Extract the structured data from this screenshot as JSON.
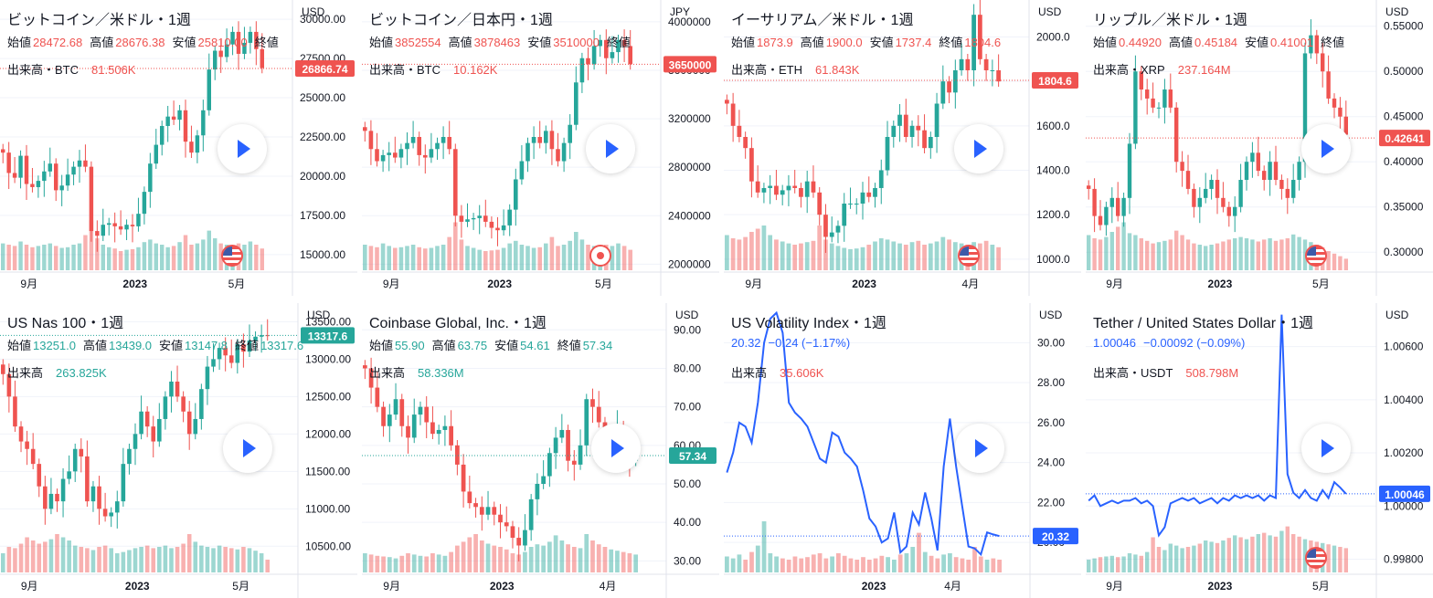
{
  "colors": {
    "up": "#26a69a",
    "down": "#ef5350",
    "line": "#2962ff",
    "grid": "#f0f3fa",
    "axis_text": "#131722",
    "bg": "#ffffff"
  },
  "chart_data": [
    {
      "type": "candlestick",
      "title": "ビットコイン／米ドル・1週",
      "currency": "USD",
      "ohlc_labels": {
        "open": "始値",
        "high": "高値",
        "low": "安値",
        "close": "終値"
      },
      "ohlc": {
        "open": "28472.68",
        "high": "28676.38",
        "low": "25810.00",
        "close": ""
      },
      "volume_label": "出来高・BTC",
      "volume": "81.506K",
      "y_ticks": [
        "30000.00",
        "27500.00",
        "25000.00",
        "22500.00",
        "20000.00",
        "17500.00",
        "15000.00"
      ],
      "ylim": [
        14000,
        31000
      ],
      "y_tick_values": [
        30000,
        27500,
        25000,
        22500,
        20000,
        17500,
        15000
      ],
      "x_ticks": [
        "9月",
        "2023",
        "5月"
      ],
      "last_price": "26866.74",
      "last_value": 26866.74,
      "last_dir": "down",
      "flag": "us",
      "closes": [
        21500,
        20200,
        19900,
        21300,
        19500,
        19300,
        19700,
        20300,
        20800,
        19100,
        19400,
        20100,
        20600,
        21000,
        20600,
        16500,
        16200,
        16900,
        17000,
        16800,
        16600,
        16900,
        16800,
        17600,
        19000,
        20800,
        22000,
        23200,
        23800,
        23600,
        24200,
        22200,
        21500,
        22600,
        24200,
        26800,
        28000,
        27600,
        28400,
        29200,
        27800,
        28500,
        29200,
        28100,
        26900
      ],
      "volumes": [
        0.42,
        0.4,
        0.38,
        0.45,
        0.4,
        0.36,
        0.38,
        0.4,
        0.42,
        0.38,
        0.35,
        0.36,
        0.4,
        0.42,
        0.55,
        0.78,
        0.5,
        0.4,
        0.36,
        0.34,
        0.3,
        0.32,
        0.33,
        0.36,
        0.44,
        0.48,
        0.42,
        0.4,
        0.36,
        0.38,
        0.44,
        0.55,
        0.4,
        0.42,
        0.48,
        0.62,
        0.5,
        0.42,
        0.4,
        0.38,
        0.42,
        0.4,
        0.45,
        0.4,
        0.34
      ]
    },
    {
      "type": "candlestick",
      "title": "ビットコイン／日本円・1週",
      "currency": "JPY",
      "ohlc_labels": {
        "open": "始値",
        "high": "高値",
        "low": "安値",
        "close": "終値"
      },
      "ohlc": {
        "open": "3852554",
        "high": "3878463",
        "low": "3510000",
        "close": ""
      },
      "volume_label": "出来高・BTC",
      "volume": "10.162K",
      "y_ticks": [
        "4000000",
        "3600000",
        "3200000",
        "2800000",
        "2400000",
        "2000000"
      ],
      "ylim": [
        1950000,
        4150000
      ],
      "y_tick_values": [
        4000000,
        3600000,
        3200000,
        2800000,
        2400000,
        2000000
      ],
      "x_ticks": [
        "9月",
        "2023",
        "5月"
      ],
      "last_price": "3650000",
      "last_value": 3650000,
      "last_dir": "down",
      "flag": "jp",
      "closes": [
        3100000,
        2950000,
        2850000,
        2900000,
        2920000,
        2880000,
        2950000,
        3000000,
        3050000,
        2900000,
        2880000,
        2950000,
        3000000,
        3050000,
        2950000,
        2400000,
        2350000,
        2370000,
        2380000,
        2400000,
        2350000,
        2300000,
        2280000,
        2320000,
        2450000,
        2700000,
        2850000,
        3000000,
        3050000,
        3000000,
        3100000,
        2950000,
        2850000,
        3000000,
        3150000,
        3500000,
        3700000,
        3650000,
        3800000,
        3850000,
        3700000,
        3750000,
        3850000,
        3800000,
        3650000
      ],
      "volumes": [
        0.4,
        0.38,
        0.36,
        0.42,
        0.38,
        0.35,
        0.36,
        0.38,
        0.4,
        0.36,
        0.34,
        0.35,
        0.38,
        0.4,
        0.52,
        0.75,
        0.48,
        0.38,
        0.35,
        0.32,
        0.3,
        0.31,
        0.32,
        0.35,
        0.42,
        0.46,
        0.4,
        0.38,
        0.35,
        0.36,
        0.42,
        0.52,
        0.38,
        0.4,
        0.46,
        0.6,
        0.48,
        0.4,
        0.38,
        0.36,
        0.4,
        0.38,
        0.42,
        0.38,
        0.32
      ]
    },
    {
      "type": "candlestick",
      "title": "イーサリアム／米ドル・1週",
      "currency": "USD",
      "ohlc_labels": {
        "open": "始値",
        "high": "高値",
        "low": "安値",
        "close": "終値"
      },
      "ohlc": {
        "open": "1873.9",
        "high": "1900.0",
        "low": "1737.4",
        "close": "1804.6"
      },
      "volume_label": "出来高・ETH",
      "volume": "61.843K",
      "y_ticks": [
        "2000.0",
        "1800.0",
        "1600.0",
        "1400.0",
        "1200.0",
        "1000.0"
      ],
      "ylim": [
        950,
        2150
      ],
      "y_tick_values": [
        2000,
        1800,
        1600,
        1400,
        1200,
        1000
      ],
      "x_ticks": [
        "9月",
        "2023",
        "4月"
      ],
      "last_price": "1804.6",
      "last_value": 1804.6,
      "last_dir": "down",
      "flag": "us",
      "closes": [
        1700,
        1600,
        1550,
        1500,
        1350,
        1300,
        1320,
        1330,
        1290,
        1310,
        1330,
        1320,
        1280,
        1350,
        1300,
        1200,
        1100,
        1120,
        1150,
        1250,
        1250,
        1250,
        1300,
        1280,
        1320,
        1400,
        1550,
        1600,
        1650,
        1550,
        1600,
        1580,
        1500,
        1550,
        1700,
        1800,
        1750,
        1850,
        1900,
        1850,
        2100,
        1900,
        1850,
        1850,
        1800
      ],
      "volumes": [
        0.55,
        0.5,
        0.48,
        0.52,
        0.6,
        0.65,
        0.7,
        0.55,
        0.48,
        0.45,
        0.42,
        0.4,
        0.42,
        0.44,
        0.46,
        0.7,
        0.48,
        0.42,
        0.38,
        0.35,
        0.33,
        0.34,
        0.36,
        0.4,
        0.45,
        0.5,
        0.48,
        0.45,
        0.42,
        0.4,
        0.44,
        0.46,
        0.4,
        0.42,
        0.45,
        0.52,
        0.48,
        0.44,
        0.42,
        0.4,
        0.44,
        0.42,
        0.46,
        0.4,
        0.36
      ]
    },
    {
      "type": "candlestick",
      "title": "リップル／米ドル・1週",
      "currency": "USD",
      "ohlc_labels": {
        "open": "始値",
        "high": "高値",
        "low": "安値",
        "close": "終値"
      },
      "ohlc": {
        "open": "0.44920",
        "high": "0.45184",
        "low": "0.41001",
        "close": ""
      },
      "volume_label": "出来高・XRP",
      "volume": "237.164M",
      "y_ticks": [
        "0.55000",
        "0.50000",
        "0.45000",
        "0.40000",
        "0.35000",
        "0.30000"
      ],
      "ylim": [
        0.28,
        0.575
      ],
      "y_tick_values": [
        0.55,
        0.5,
        0.45,
        0.4,
        0.35,
        0.3
      ],
      "x_ticks": [
        "9月",
        "2023",
        "5月"
      ],
      "last_price": "0.42641",
      "last_value": 0.42641,
      "last_dir": "down",
      "flag": "us",
      "closes": [
        0.37,
        0.34,
        0.33,
        0.35,
        0.36,
        0.34,
        0.36,
        0.42,
        0.5,
        0.48,
        0.47,
        0.46,
        0.46,
        0.48,
        0.46,
        0.4,
        0.39,
        0.37,
        0.35,
        0.36,
        0.37,
        0.38,
        0.36,
        0.35,
        0.34,
        0.35,
        0.38,
        0.4,
        0.41,
        0.39,
        0.38,
        0.4,
        0.38,
        0.37,
        0.36,
        0.38,
        0.4,
        0.52,
        0.54,
        0.52,
        0.5,
        0.47,
        0.46,
        0.45,
        0.43
      ],
      "volumes": [
        0.55,
        0.5,
        0.48,
        0.52,
        0.6,
        0.68,
        0.75,
        0.58,
        0.55,
        0.5,
        0.46,
        0.42,
        0.44,
        0.46,
        0.48,
        0.62,
        0.55,
        0.48,
        0.42,
        0.4,
        0.38,
        0.4,
        0.42,
        0.45,
        0.48,
        0.5,
        0.52,
        0.5,
        0.48,
        0.45,
        0.48,
        0.5,
        0.46,
        0.48,
        0.5,
        0.56,
        0.52,
        0.48,
        0.44,
        0.4,
        0.36,
        0.3,
        0.26,
        0.22,
        0.18
      ]
    },
    {
      "type": "candlestick",
      "title": "US Nas 100・1週",
      "currency": "USD",
      "ohlc_labels": {
        "open": "始値",
        "high": "高値",
        "low": "安値",
        "close": "終値"
      },
      "ohlc": {
        "open": "13251.0",
        "high": "13439.0",
        "low": "13147.8",
        "close": "13317.6"
      },
      "volume_label": "出来高",
      "volume": "263.825K",
      "y_ticks": [
        "13500.00",
        "13000.00",
        "12500.00",
        "12000.00",
        "11500.00",
        "11000.00",
        "10500.00"
      ],
      "ylim": [
        10150,
        13700
      ],
      "y_tick_values": [
        13500,
        13000,
        12500,
        12000,
        11500,
        11000,
        10500
      ],
      "x_ticks": [
        "9月",
        "2023",
        "5月"
      ],
      "last_price": "13317.6",
      "last_value": 13317.6,
      "last_dir": "up",
      "flag": "",
      "closes": [
        12800,
        12500,
        12100,
        11900,
        11800,
        11600,
        11300,
        11000,
        11200,
        11100,
        11400,
        11500,
        11800,
        11700,
        11100,
        11300,
        11000,
        10900,
        10950,
        11100,
        11600,
        11800,
        12000,
        12300,
        12100,
        11900,
        12200,
        12500,
        12700,
        12500,
        12300,
        12000,
        12200,
        12600,
        12900,
        13000,
        13150,
        13050,
        12950,
        13200,
        13100,
        13250,
        13300,
        13320,
        13318
      ],
      "volumes": [
        0.3,
        0.4,
        0.38,
        0.45,
        0.55,
        0.5,
        0.45,
        0.48,
        0.52,
        0.6,
        0.55,
        0.5,
        0.42,
        0.4,
        0.38,
        0.35,
        0.4,
        0.42,
        0.38,
        0.3,
        0.32,
        0.35,
        0.38,
        0.4,
        0.42,
        0.38,
        0.4,
        0.42,
        0.38,
        0.4,
        0.45,
        0.6,
        0.48,
        0.42,
        0.4,
        0.38,
        0.42,
        0.4,
        0.38,
        0.36,
        0.4,
        0.38,
        0.34,
        0.3,
        0.2
      ]
    },
    {
      "type": "candlestick",
      "title": "Coinbase Global, Inc.・1週",
      "currency": "USD",
      "ohlc_labels": {
        "open": "始値",
        "high": "高値",
        "low": "安値",
        "close": "終値"
      },
      "ohlc": {
        "open": "55.90",
        "high": "63.75",
        "low": "54.61",
        "close": "57.34"
      },
      "volume_label": "出来高",
      "volume": "58.336M",
      "y_ticks": [
        "90.00",
        "80.00",
        "70.00",
        "60.00",
        "50.00",
        "40.00",
        "30.00"
      ],
      "ylim": [
        27,
        96
      ],
      "y_tick_values": [
        90,
        80,
        70,
        60,
        50,
        40,
        30
      ],
      "x_ticks": [
        "9月",
        "2023",
        "4月"
      ],
      "last_price": "57.34",
      "last_value": 57.34,
      "last_dir": "up",
      "flag": "",
      "closes": [
        80,
        75,
        70,
        65,
        68,
        72,
        65,
        62,
        68,
        70,
        66,
        63,
        64,
        65,
        60,
        55,
        48,
        45,
        44,
        42,
        44,
        42,
        40,
        39,
        36,
        34,
        38,
        46,
        50,
        52,
        58,
        62,
        64,
        56,
        55,
        60,
        72,
        70,
        66,
        60,
        62,
        65,
        58,
        56,
        57
      ],
      "volumes": [
        0.3,
        0.28,
        0.26,
        0.25,
        0.24,
        0.22,
        0.26,
        0.3,
        0.28,
        0.26,
        0.25,
        0.3,
        0.28,
        0.26,
        0.32,
        0.42,
        0.48,
        0.55,
        0.6,
        0.5,
        0.45,
        0.42,
        0.4,
        0.36,
        0.3,
        0.28,
        0.32,
        0.4,
        0.44,
        0.42,
        0.48,
        0.58,
        0.5,
        0.44,
        0.4,
        0.38,
        0.6,
        0.5,
        0.44,
        0.4,
        0.36,
        0.34,
        0.32,
        0.3,
        0.28
      ]
    },
    {
      "type": "line",
      "title": "US Volatility Index・1週",
      "currency": "USD",
      "ohlc_plain": {
        "value": "20.32",
        "change": "−0.24 (−1.17%)"
      },
      "volume_label": "出来高",
      "volume": "35.606K",
      "y_ticks": [
        "30.00",
        "28.00",
        "26.00",
        "24.00",
        "22.00",
        "20.00"
      ],
      "ylim": [
        18.5,
        31.8
      ],
      "y_tick_values": [
        30,
        28,
        26,
        24,
        22,
        20
      ],
      "x_ticks": [
        "2023",
        "4月"
      ],
      "last_price": "20.32",
      "last_value": 20.32,
      "last_dir": "line",
      "flag": "",
      "closes": [
        23.5,
        24.5,
        26.0,
        25.8,
        25.0,
        27.0,
        30.0,
        31.2,
        31.5,
        30.5,
        27.0,
        26.5,
        26.2,
        25.8,
        25.0,
        24.2,
        24.0,
        25.5,
        25.3,
        24.5,
        24.2,
        23.8,
        22.6,
        21.2,
        20.8,
        20.0,
        20.2,
        21.5,
        19.5,
        19.8,
        21.5,
        20.9,
        22.5,
        21.2,
        19.6,
        23.8,
        26.2,
        23.8,
        21.8,
        19.8,
        19.7,
        19.4,
        20.5,
        20.4,
        20.32
      ],
      "volumes": [
        0.25,
        0.22,
        0.28,
        0.2,
        0.32,
        0.42,
        0.8,
        0.3,
        0.25,
        0.22,
        0.2,
        0.25,
        0.22,
        0.24,
        0.28,
        0.3,
        0.22,
        0.25,
        0.3,
        0.26,
        0.22,
        0.2,
        0.24,
        0.2,
        0.22,
        0.26,
        0.24,
        0.2,
        0.28,
        0.3,
        0.4,
        0.62,
        0.32,
        0.26,
        0.22,
        0.28,
        0.3,
        0.24,
        0.22,
        0.2,
        0.4,
        0.25,
        0.2,
        0.22,
        0.2
      ]
    },
    {
      "type": "line",
      "title": "Tether / United States Dollar・1週",
      "currency": "USD",
      "ohlc_plain": {
        "value": "1.00046",
        "change": "−0.00092 (−0.09%)"
      },
      "volume_label": "出来高・USDT",
      "volume": "508.798M",
      "y_ticks": [
        "1.00600",
        "1.00400",
        "1.00200",
        "1.00000",
        "0.99800"
      ],
      "ylim": [
        0.9975,
        1.0075
      ],
      "y_tick_values": [
        1.006,
        1.004,
        1.002,
        1.0,
        0.998
      ],
      "x_ticks": [
        "9月",
        "2023",
        "5月"
      ],
      "last_price": "1.00046",
      "last_value": 1.00046,
      "last_dir": "line",
      "flag": "us",
      "closes": [
        1.0002,
        1.0004,
        1.0,
        1.0001,
        1.0002,
        1.0001,
        1.0002,
        1.0002,
        1.0003,
        1.0001,
        1.0002,
        1.0,
        0.9989,
        0.9992,
        1.0001,
        1.0002,
        1.0003,
        1.0002,
        1.0003,
        1.0001,
        1.0002,
        1.0003,
        1.0001,
        1.0003,
        1.0002,
        1.0004,
        1.0003,
        1.0004,
        1.0003,
        1.0004,
        1.0002,
        1.0004,
        1.0003,
        1.0072,
        1.0012,
        1.0005,
        1.0003,
        1.0006,
        1.0003,
        1.0002,
        1.0006,
        1.0003,
        1.0009,
        1.0007,
        1.00046
      ],
      "volumes": [
        0.2,
        0.22,
        0.24,
        0.25,
        0.26,
        0.24,
        0.25,
        0.3,
        0.28,
        0.26,
        0.32,
        0.55,
        0.4,
        0.35,
        0.45,
        0.42,
        0.38,
        0.4,
        0.42,
        0.45,
        0.5,
        0.48,
        0.46,
        0.5,
        0.54,
        0.58,
        0.55,
        0.52,
        0.56,
        0.6,
        0.62,
        0.58,
        0.56,
        0.65,
        0.72,
        0.6,
        0.56,
        0.52,
        0.5,
        0.48,
        0.46,
        0.44,
        0.42,
        0.4,
        0.38
      ]
    }
  ]
}
